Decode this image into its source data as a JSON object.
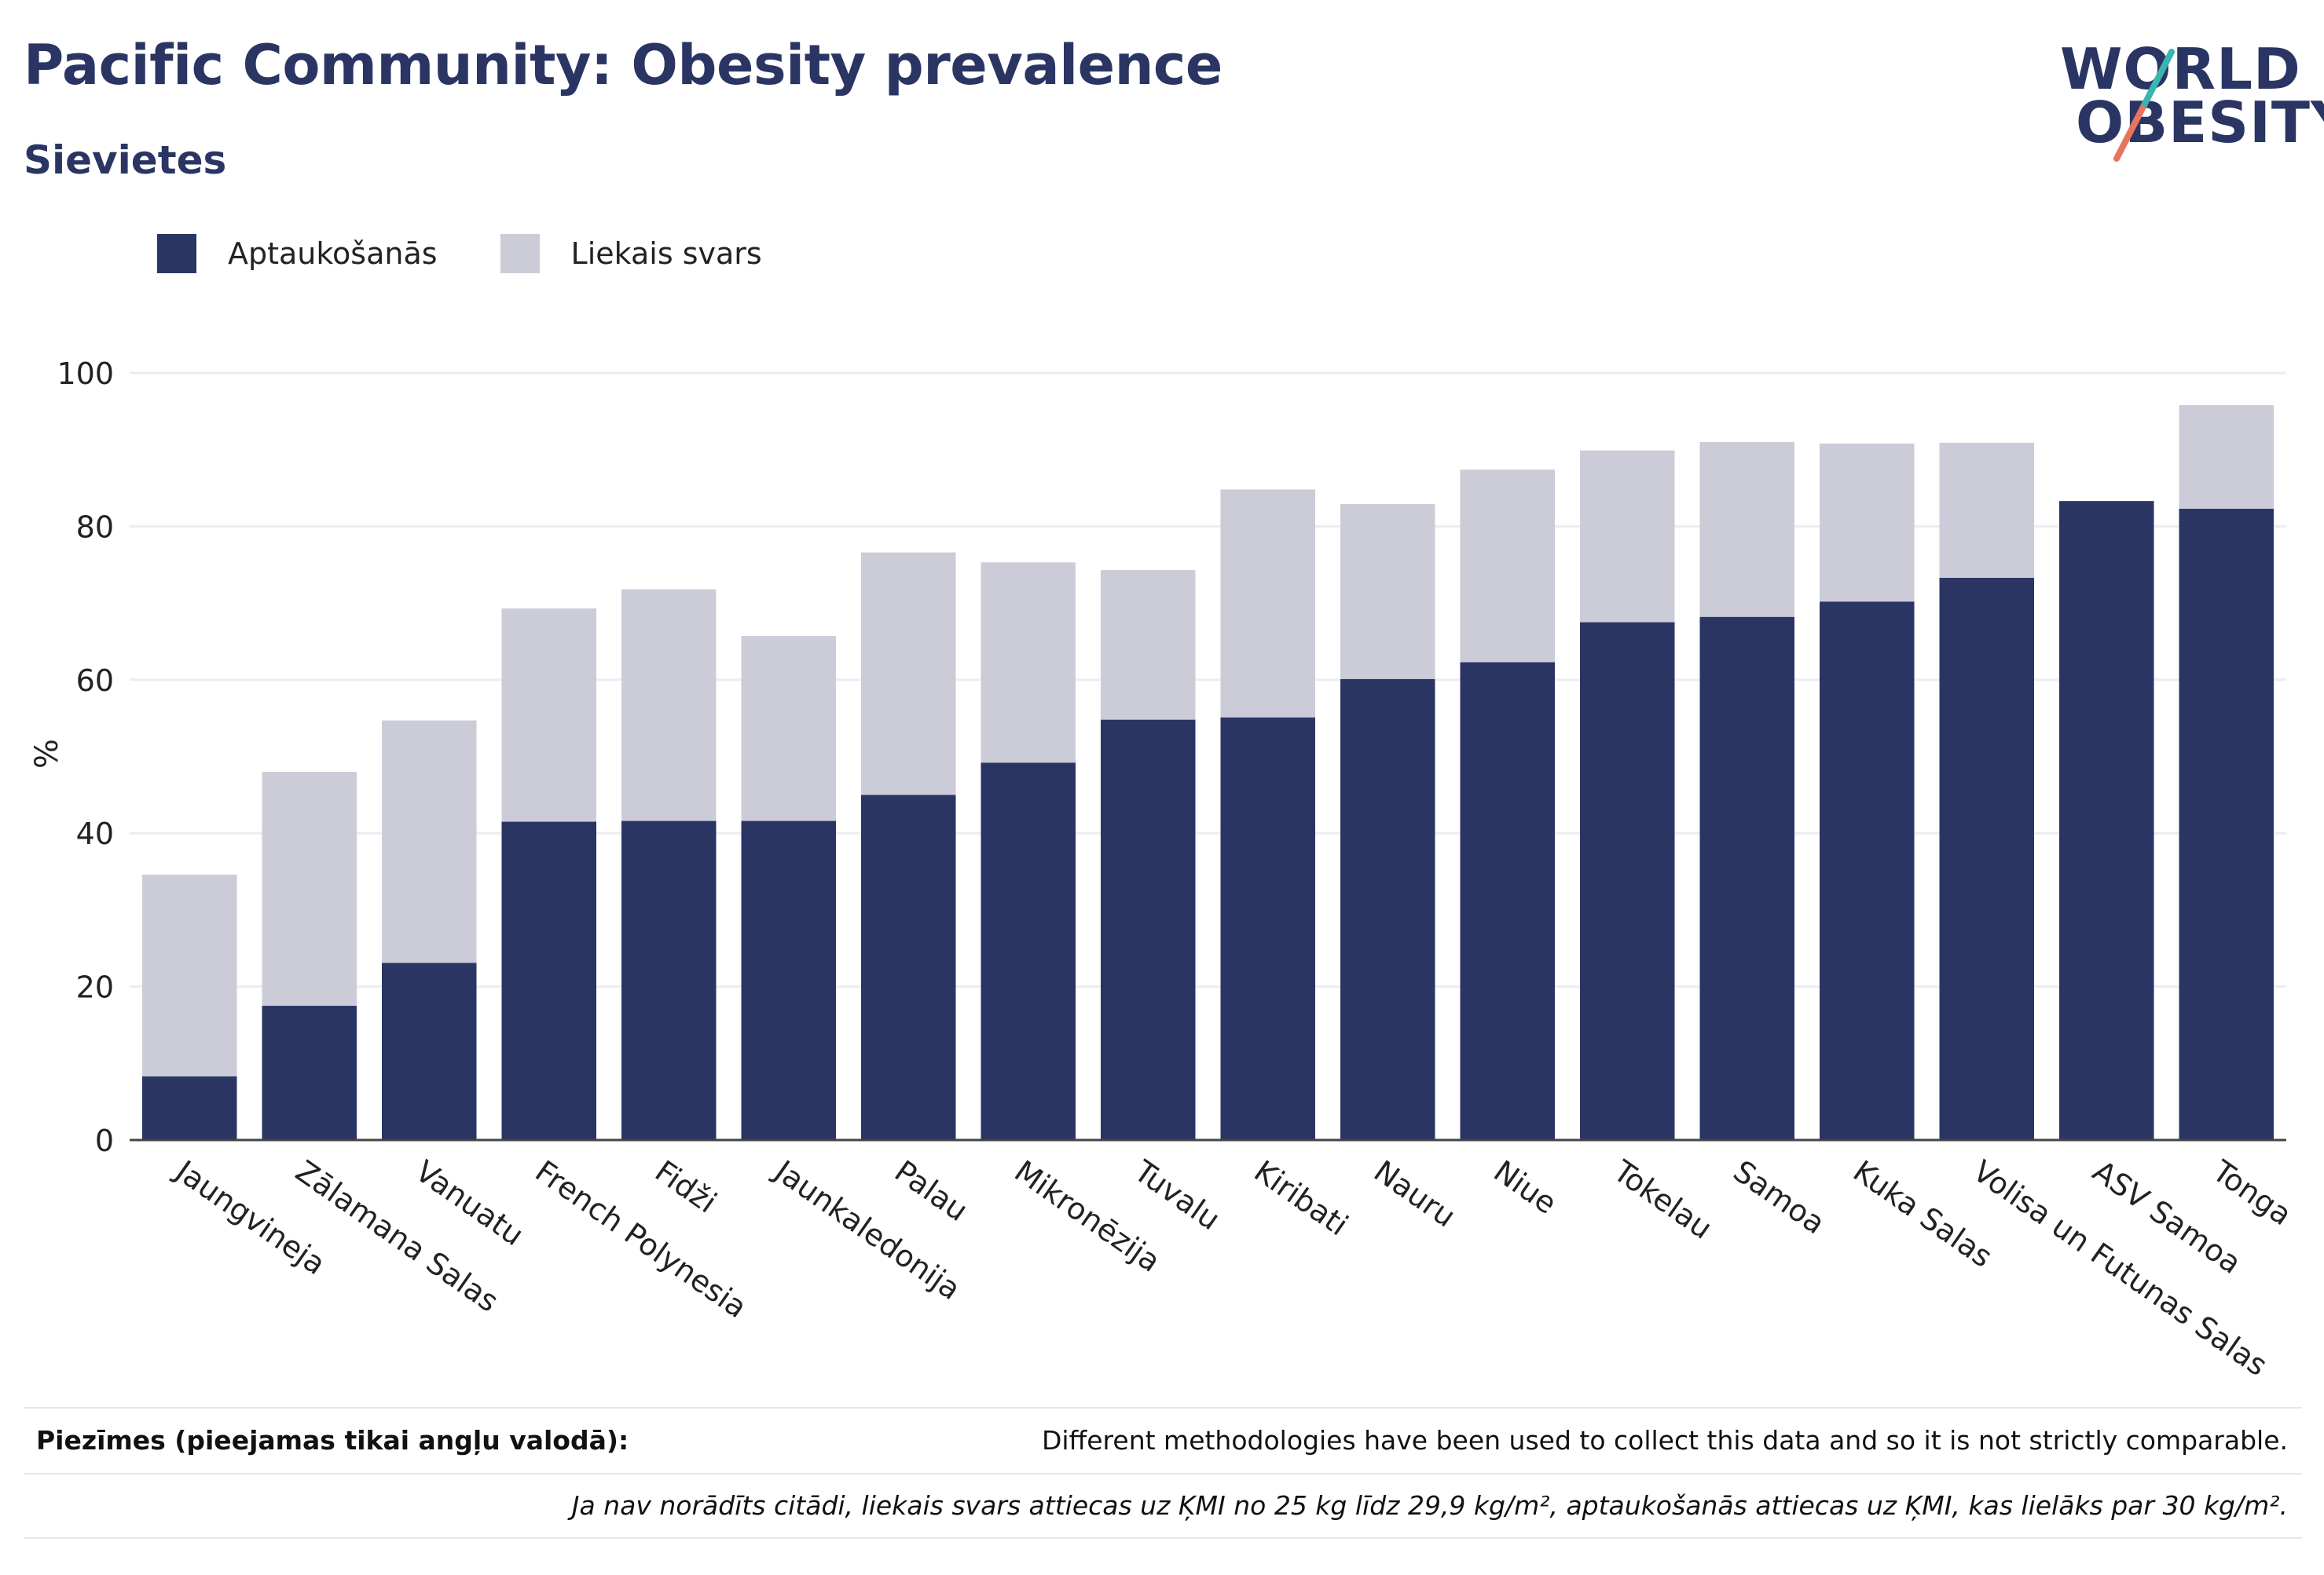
{
  "title": "Pacific Community: Obesity prevalence",
  "subtitle": "Sievietes",
  "logo": {
    "line1": "WORLD",
    "line2": "OBESITY"
  },
  "colors": {
    "obesity": "#2a3563",
    "overweight": "#cbccd8",
    "brand_teal": "#3ab5b0",
    "brand_coral": "#e8735f",
    "grid": "#ececf2"
  },
  "legend": [
    {
      "label": "Aptaukošanās",
      "color": "#2a3563"
    },
    {
      "label": "Liekais svars",
      "color": "#cbccd8"
    }
  ],
  "notes": {
    "label": "Piezīmes (pieejamas tikai angļu valodā):",
    "text": "Different methodologies have been used to collect this data and so it is not strictly comparable.",
    "definition": "Ja nav norādīts citādi, liekais svars attiecas uz ĶMI no 25 kg līdz 29,9 kg/m², aptaukošanās attiecas uz ĶMI, kas lielāks par 30 kg/m²."
  },
  "chart_data": {
    "type": "bar",
    "stacked": true,
    "ylabel": "%",
    "ylim": [
      0,
      100
    ],
    "yticks": [
      0,
      20,
      40,
      60,
      80,
      100
    ],
    "grid": true,
    "legend_position": "top-left",
    "categories": [
      "Jaungvineja",
      "Zālamana Salas",
      "Vanuatu",
      "French Polynesia",
      "Fidži",
      "Jaunkaledonija",
      "Palau",
      "Mikronēzija",
      "Tuvalu",
      "Kiribati",
      "Nauru",
      "Niue",
      "Tokelau",
      "Samoa",
      "Kuka Salas",
      "Volisa un Futunas Salas",
      "ASV Samoa",
      "Tonga"
    ],
    "series": [
      {
        "name": "Aptaukošanās",
        "values": [
          8.3,
          17.5,
          23.1,
          41.5,
          41.6,
          41.6,
          45.0,
          49.2,
          54.8,
          55.1,
          60.1,
          62.3,
          67.5,
          68.2,
          70.2,
          73.3,
          83.3,
          82.3
        ]
      },
      {
        "name": "Liekais svars",
        "values": [
          26.3,
          30.5,
          31.6,
          27.8,
          30.2,
          24.1,
          31.6,
          26.1,
          19.5,
          29.7,
          22.8,
          25.1,
          22.4,
          22.8,
          20.6,
          17.6,
          0,
          13.5
        ]
      }
    ]
  }
}
